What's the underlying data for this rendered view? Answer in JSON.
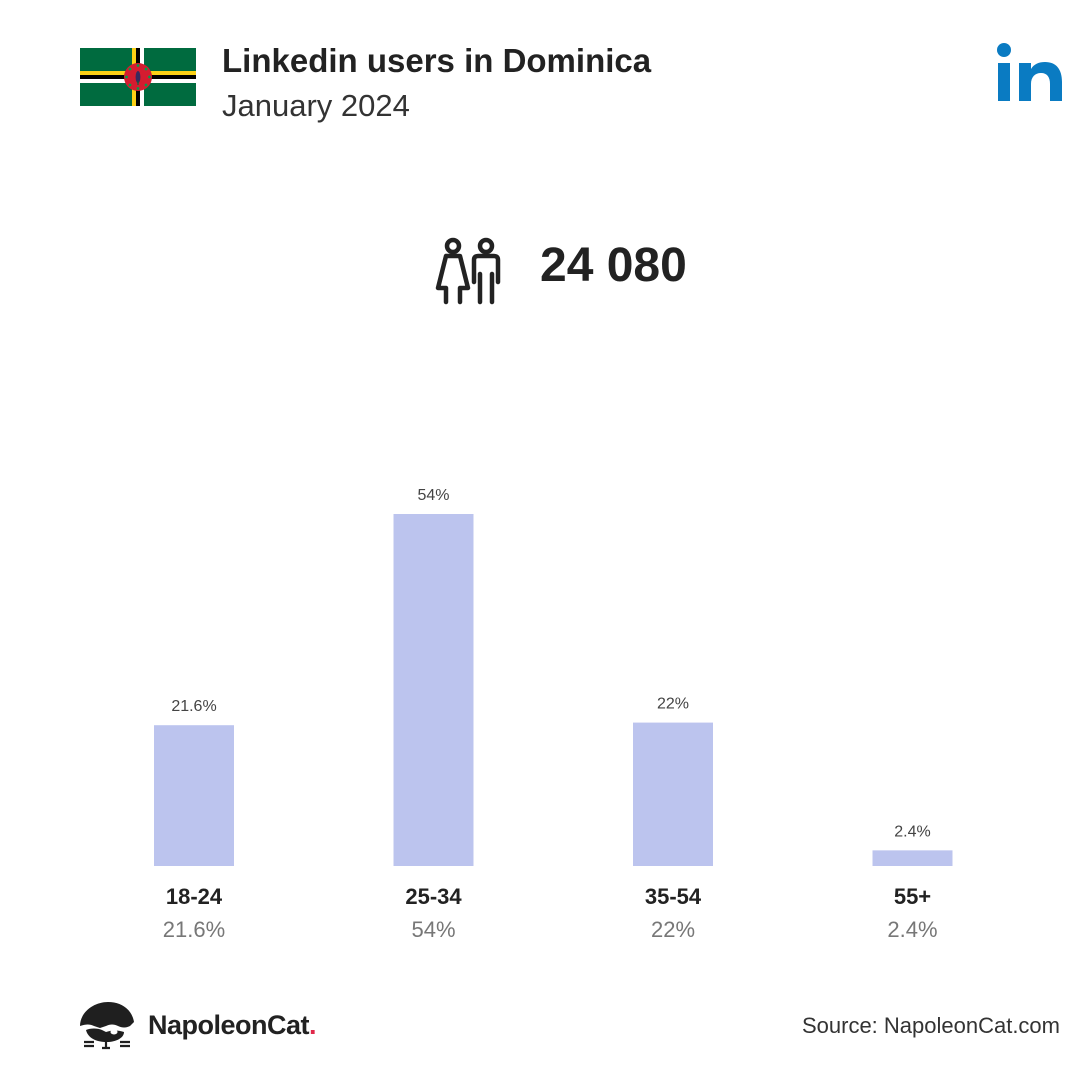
{
  "header": {
    "title": "Linkedin users in Dominica",
    "subtitle": "January 2024",
    "flag_icon": "dominica-flag-icon",
    "brand_icon": "linkedin-icon"
  },
  "summary": {
    "icon": "people-icon",
    "total_users": "24 080"
  },
  "chart_data": {
    "type": "bar",
    "categories": [
      "18-24",
      "25-34",
      "35-54",
      "55+"
    ],
    "values": [
      21.6,
      54,
      22,
      2.4
    ],
    "value_labels": [
      "21.6%",
      "54%",
      "22%",
      "2.4%"
    ],
    "unit": "%",
    "ylim": [
      0,
      54
    ],
    "grid": false,
    "bar_color": "#bcc4ee"
  },
  "footer": {
    "brand_name": "NapoleonCat",
    "brand_dot": ".",
    "source": "Source: NapoleonCat.com",
    "logo_icon": "napoleoncat-logo-icon"
  },
  "colors": {
    "linkedin_blue": "#0a7bc2",
    "bar": "#bcc4ee",
    "accent_red": "#e0284a"
  }
}
